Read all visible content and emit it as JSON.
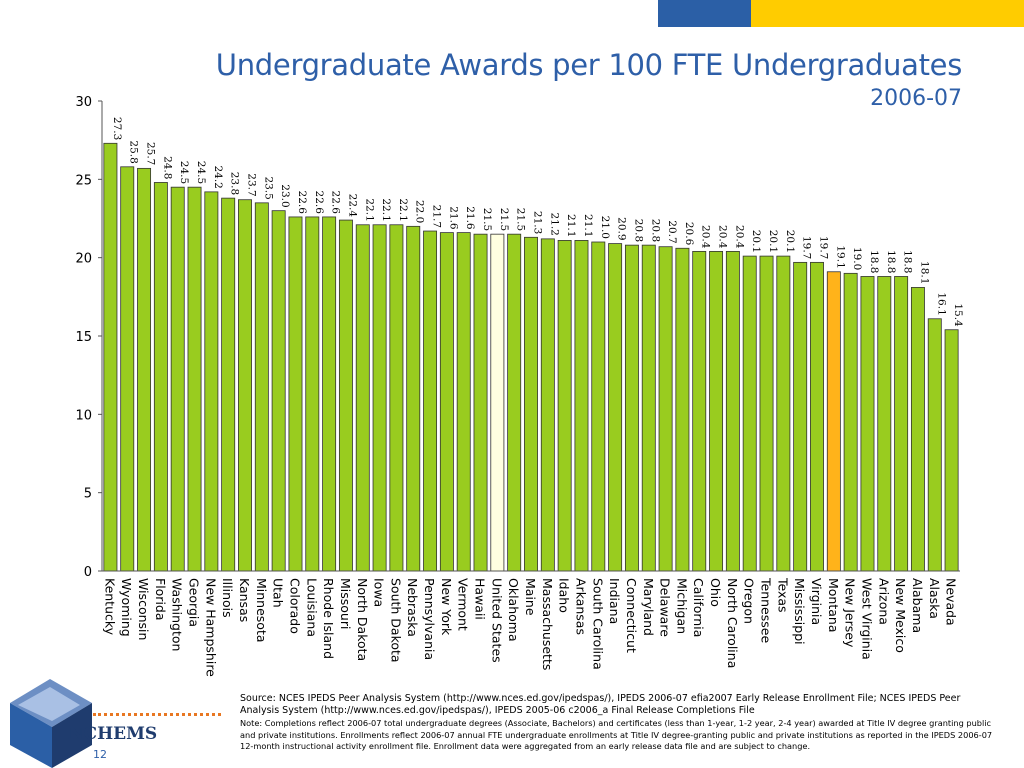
{
  "slide": {
    "title": "Undergraduate Awards per 100 FTE Undergraduates",
    "subtitle": "2006-07",
    "logo_text": "NCHEMS",
    "page_number": "12",
    "source": "Source:  NCES IPEDS Peer Analysis System (http://www.nces.ed.gov/ipedspas/), IPEDS 2006-07 efia2007 Early Release Enrollment File; NCES IPEDS Peer Analysis System (http://www.nces.ed.gov/ipedspas/), IPEDS 2005-06 c2006_a Final Release Completions File",
    "note": "Note:  Completions reflect 2006-07 total undergraduate degrees (Associate, Bachelors) and certificates (less than 1-year, 1-2 year, 2-4 year) awarded at Title IV degree granting public and private institutions. Enrollments reflect 2006-07 annual FTE undergraduate enrollments at Title IV degree-granting public and private institutions as reported in the IPEDS 2006-07 12-month instructional activity enrollment file. Enrollment data were aggregated from an early release data file and are subject to change."
  },
  "colors": {
    "accent_blue": "#2b5fa6",
    "accent_yellow": "#ffcc00",
    "title": "#2e5fa8",
    "bar_default": "#99cc1f",
    "bar_us": "#ffffe0",
    "bar_highlight": "#ffb31a",
    "bar_stroke": "#333333",
    "logo_dots": "#e87722"
  },
  "chart_data": {
    "type": "bar",
    "title": "Undergraduate Awards per 100 FTE Undergraduates",
    "subtitle": "2006-07",
    "xlabel": "",
    "ylabel": "",
    "ylim": [
      0,
      30
    ],
    "yticks": [
      0,
      5,
      10,
      15,
      20,
      25,
      30
    ],
    "grid": false,
    "legend": "none",
    "categories": [
      "Kentucky",
      "Wyoming",
      "Wisconsin",
      "Florida",
      "Washington",
      "Georgia",
      "New Hampshire",
      "Illinois",
      "Kansas",
      "Minnesota",
      "Utah",
      "Colorado",
      "Louisiana",
      "Rhode Island",
      "Missouri",
      "North Dakota",
      "Iowa",
      "South Dakota",
      "Nebraska",
      "Pennsylvania",
      "New York",
      "Vermont",
      "Hawaii",
      "United States",
      "Oklahoma",
      "Maine",
      "Massachusetts",
      "Idaho",
      "Arkansas",
      "South Carolina",
      "Indiana",
      "Connecticut",
      "Maryland",
      "Delaware",
      "Michigan",
      "California",
      "Ohio",
      "North Carolina",
      "Oregon",
      "Tennessee",
      "Texas",
      "Mississippi",
      "Virginia",
      "Montana",
      "New Jersey",
      "West Virginia",
      "Arizona",
      "New Mexico",
      "Alabama",
      "Alaska",
      "Nevada"
    ],
    "values": [
      27.3,
      25.8,
      25.7,
      24.8,
      24.5,
      24.5,
      24.2,
      23.8,
      23.7,
      23.5,
      23.0,
      22.6,
      22.6,
      22.6,
      22.4,
      22.1,
      22.1,
      22.1,
      22.0,
      21.7,
      21.6,
      21.6,
      21.5,
      21.5,
      21.5,
      21.3,
      21.2,
      21.1,
      21.1,
      21.0,
      20.9,
      20.8,
      20.8,
      20.7,
      20.6,
      20.4,
      20.4,
      20.4,
      20.1,
      20.1,
      20.1,
      19.7,
      19.7,
      19.1,
      19.0,
      18.8,
      18.8,
      18.8,
      18.1,
      16.1,
      15.4
    ],
    "data_labels": [
      "27.3",
      "25.8",
      "25.7",
      "24.8",
      "24.5",
      "24.5",
      "24.2",
      "23.8",
      "23.7",
      "23.5",
      "23.0",
      "22.6",
      "22.6",
      "22.6",
      "22.4",
      "22.1",
      "22.1",
      "22.1",
      "22.0",
      "21.7",
      "21.6",
      "21.6",
      "21.5",
      "21.5",
      "21.5",
      "21.3",
      "21.2",
      "21.1",
      "21.1",
      "21.0",
      "20.9",
      "20.8",
      "20.8",
      "20.7",
      "20.6",
      "20.4",
      "20.4",
      "20.4",
      "20.1",
      "20.1",
      "20.1",
      "19.7",
      "19.7",
      "19.1",
      "19.0",
      "18.8",
      "18.8",
      "18.8",
      "18.1",
      "16.1",
      "15.4"
    ],
    "highlight": {
      "United States": "bar_us",
      "Montana": "bar_highlight"
    }
  }
}
